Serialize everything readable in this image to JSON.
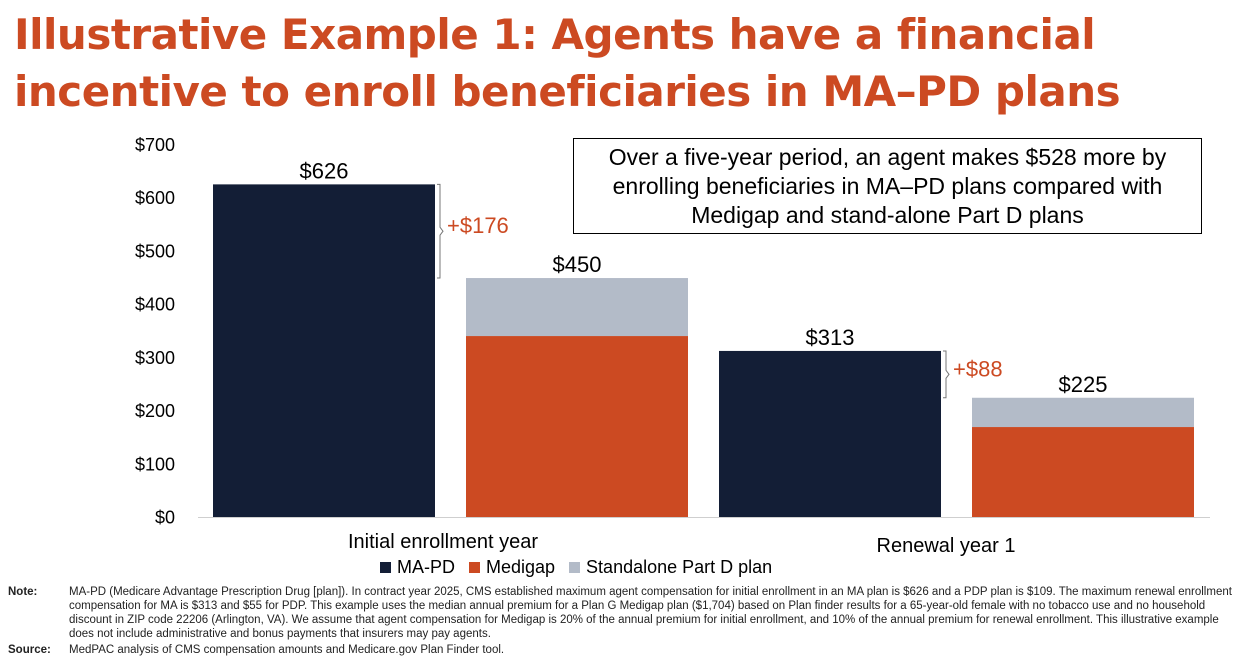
{
  "header": {
    "title": "Illustrative Example 1: Agents have a financial incentive to enroll beneficiaries in MA–PD plans"
  },
  "callout": {
    "text": "Over a five-year period, an agent makes $528 more by enrolling beneficiaries in MA–PD plans compared with Medigap and stand-alone Part D plans"
  },
  "footer": {
    "note_label": "Note:",
    "note_text": "MA-PD (Medicare Advantage Prescription Drug [plan]). In contract year 2025, CMS established maximum agent compensation for initial enrollment in an MA plan is $626 and a PDP plan is $109. The maximum renewal enrollment compensation for MA is $313 and $55 for PDP. This example uses the median annual premium for a Plan G Medigap plan ($1,704) based on Plan finder results for a 65-year-old female with no tobacco use and no household discount in ZIP code 22206 (Arlington, VA). We assume that agent compensation for Medigap is 20% of the annual premium for initial enrollment, and 10% of the annual premium for renewal enrollment. This illustrative example does not include administrative and bonus payments that insurers may pay agents.",
    "source_label": "Source:",
    "source_text": "MedPAC analysis of CMS compensation amounts and Medicare.gov Plan Finder tool."
  },
  "colors": {
    "mapd": "#131E36",
    "medigap": "#CC4A22",
    "pdp": "#B3BBC8",
    "accent": "#CC4A22"
  },
  "chart_data": {
    "type": "bar",
    "stacked": true,
    "categories": [
      "Initial enrollment year",
      "Renewal year 1"
    ],
    "ylim": [
      0,
      700
    ],
    "yticks": [
      0,
      100,
      200,
      300,
      400,
      500,
      600,
      700
    ],
    "ytick_labels": [
      "$0",
      "$100",
      "$200",
      "$300",
      "$400",
      "$500",
      "$600",
      "$700"
    ],
    "grid": false,
    "legend": [
      "MA-PD",
      "Medigap",
      "Standalone Part D plan"
    ],
    "legend_position": "bottom",
    "bars": [
      {
        "category": "Initial enrollment year",
        "group": "MA-PD",
        "segments": [
          {
            "series": "MA-PD",
            "value": 626
          }
        ],
        "total_label": "$626"
      },
      {
        "category": "Initial enrollment year",
        "group": "Medigap + PDP",
        "segments": [
          {
            "series": "Medigap",
            "value": 341
          },
          {
            "series": "Standalone Part D plan",
            "value": 109
          }
        ],
        "total_label": "$450"
      },
      {
        "category": "Renewal year 1",
        "group": "MA-PD",
        "segments": [
          {
            "series": "MA-PD",
            "value": 313
          }
        ],
        "total_label": "$313"
      },
      {
        "category": "Renewal year 1",
        "group": "Medigap + PDP",
        "segments": [
          {
            "series": "Medigap",
            "value": 170
          },
          {
            "series": "Standalone Part D plan",
            "value": 55
          }
        ],
        "total_label": "$225"
      }
    ],
    "annotations": [
      {
        "label": "+$176",
        "from": 450,
        "to": 626,
        "category": "Initial enrollment year"
      },
      {
        "label": "+$88",
        "from": 225,
        "to": 313,
        "category": "Renewal year 1"
      }
    ]
  }
}
